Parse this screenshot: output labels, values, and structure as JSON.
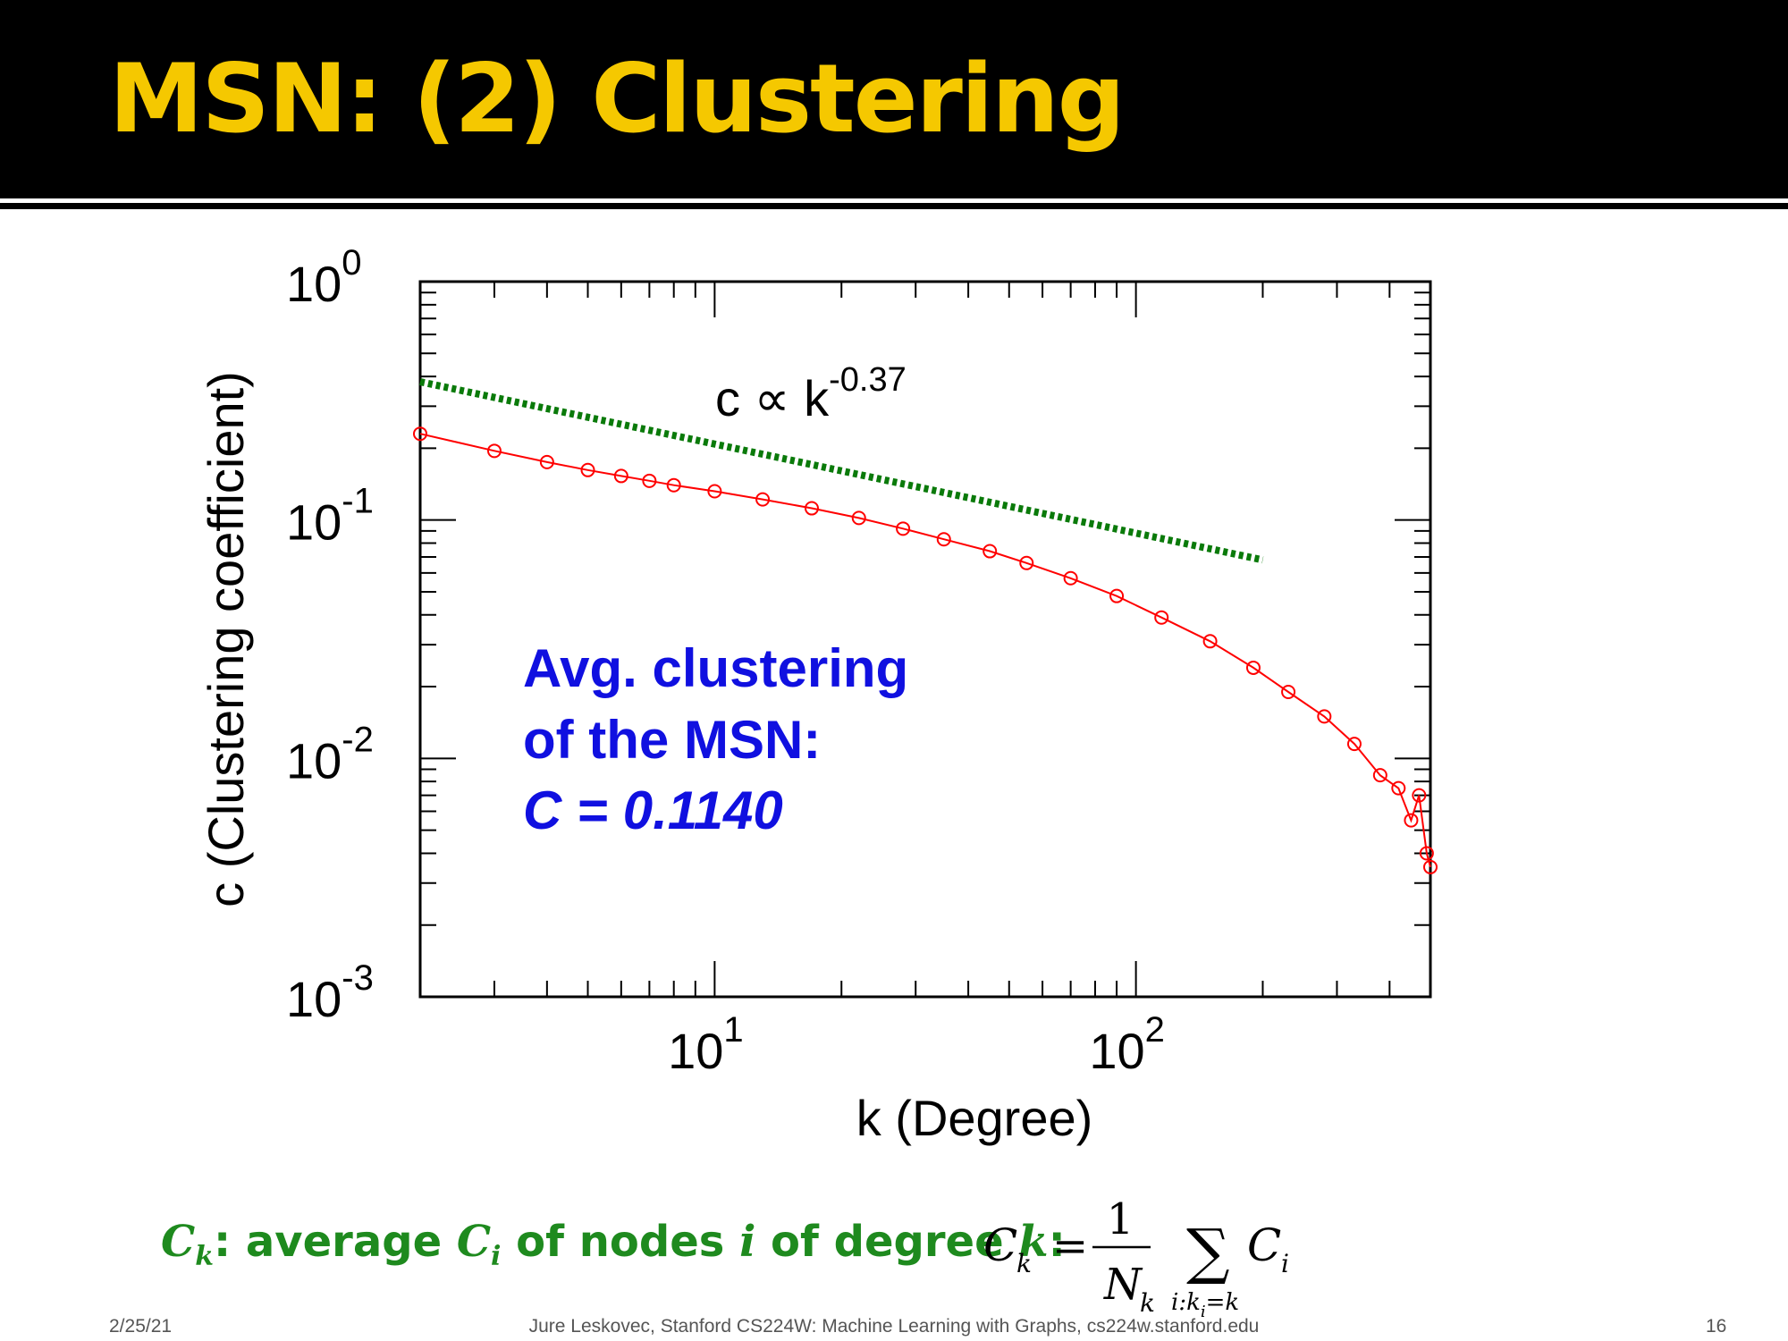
{
  "slide": {
    "title": "MSN: (2) Clustering",
    "footer_date": "2/25/21",
    "footer_center": "Jure Leskovec, Stanford CS224W: Machine Learning with Graphs, cs224w.stanford.edu",
    "footer_page": "16"
  },
  "annotation": {
    "line1": "Avg. clustering",
    "line2": "of the MSN:",
    "line3": "C = 0.1140"
  },
  "definition": {
    "c_symbol": "C",
    "k_sub": "k",
    "text_a": ": average ",
    "ci_symbol": "C",
    "i_sub": "i",
    "text_b": " of nodes ",
    "i_symbol": "i",
    "text_c": " of degree ",
    "k_symbol": "k",
    "colon": ":"
  },
  "formula": {
    "lhs": "C",
    "lhs_sub": "k",
    "equals": "=",
    "numerator": "1",
    "denominator": "N",
    "denominator_sub": "k",
    "sigma": "∑",
    "sum_index": "i:k",
    "sum_index_sub": "i",
    "sum_index_rhs": "=k",
    "term": "C",
    "term_sub": "i"
  },
  "chart_data": {
    "type": "scatter",
    "xlabel": "k (Degree)",
    "ylabel": "c (Clustering coefficient)",
    "xscale": "log",
    "yscale": "log",
    "xlim": [
      2,
      500
    ],
    "ylim": [
      0.001,
      1
    ],
    "x_ticks": [
      {
        "base": "10",
        "exp": "1",
        "value": 10
      },
      {
        "base": "10",
        "exp": "2",
        "value": 100
      }
    ],
    "y_ticks": [
      {
        "base": "10",
        "exp": "0",
        "value": 1
      },
      {
        "base": "10",
        "exp": "-1",
        "value": 0.1
      },
      {
        "base": "10",
        "exp": "-2",
        "value": 0.01
      },
      {
        "base": "10",
        "exp": "-3",
        "value": 0.001
      }
    ],
    "grid": false,
    "fit_label": {
      "base": "c ∝ k",
      "exp": "-0.37"
    },
    "series": [
      {
        "color": "#ff0000",
        "marker": "circle",
        "x": [
          2,
          3,
          4,
          5,
          6,
          7,
          8,
          10,
          13,
          17,
          22,
          28,
          35,
          45,
          55,
          70,
          90,
          115,
          150,
          190,
          230,
          280,
          330,
          380,
          420,
          450,
          470,
          490,
          500
        ],
        "y": [
          0.23,
          0.195,
          0.175,
          0.162,
          0.153,
          0.146,
          0.14,
          0.132,
          0.122,
          0.112,
          0.102,
          0.092,
          0.083,
          0.074,
          0.066,
          0.057,
          0.048,
          0.039,
          0.031,
          0.024,
          0.019,
          0.015,
          0.0115,
          0.0085,
          0.0075,
          0.0055,
          0.007,
          0.004,
          0.0035
        ]
      },
      {
        "color": "#0a7a0a",
        "style": "dotted",
        "x": [
          2,
          200
        ],
        "y": [
          0.38,
          0.068
        ]
      }
    ]
  }
}
